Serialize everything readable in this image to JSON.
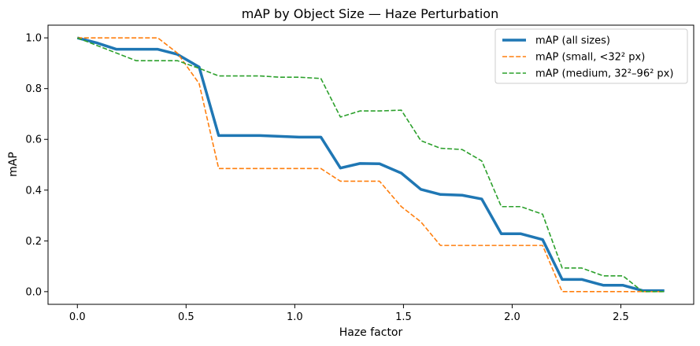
{
  "chart_data": {
    "type": "line",
    "title": "mAP by Object Size — Haze Perturbation",
    "xlabel": "Haze factor",
    "ylabel": "mAP",
    "xlim": [
      -0.135,
      2.835
    ],
    "ylim": [
      -0.05,
      1.05
    ],
    "xticks": [
      0.0,
      0.5,
      1.0,
      1.5,
      2.0,
      2.5
    ],
    "xtick_labels": [
      "0.0",
      "0.5",
      "1.0",
      "1.5",
      "2.0",
      "2.5"
    ],
    "yticks": [
      0.0,
      0.2,
      0.4,
      0.6,
      0.8,
      1.0
    ],
    "ytick_labels": [
      "0.0",
      "0.2",
      "0.4",
      "0.6",
      "0.8",
      "1.0"
    ],
    "grid": false,
    "legend_position": "top-right",
    "x": [
      0.0,
      0.09,
      0.18,
      0.27,
      0.37,
      0.46,
      0.56,
      0.65,
      0.74,
      0.84,
      0.93,
      1.02,
      1.12,
      1.21,
      1.3,
      1.39,
      1.49,
      1.58,
      1.67,
      1.77,
      1.86,
      1.95,
      2.04,
      2.14,
      2.23,
      2.32,
      2.42,
      2.51,
      2.6,
      2.7
    ],
    "series": [
      {
        "name": "mAP (all sizes)",
        "color": "#1f77b4",
        "style": "solid",
        "values": [
          1.0,
          0.98,
          0.955,
          0.955,
          0.955,
          0.935,
          0.885,
          0.615,
          0.615,
          0.615,
          0.612,
          0.609,
          0.609,
          0.487,
          0.505,
          0.504,
          0.467,
          0.403,
          0.383,
          0.38,
          0.365,
          0.228,
          0.228,
          0.205,
          0.048,
          0.048,
          0.025,
          0.025,
          0.004,
          0.004
        ]
      },
      {
        "name": "mAP (small, <32² px)",
        "color": "#ff7f0e",
        "style": "dashed",
        "values": [
          1.0,
          1.0,
          1.0,
          1.0,
          1.0,
          0.94,
          0.82,
          0.485,
          0.485,
          0.485,
          0.485,
          0.485,
          0.485,
          0.435,
          0.435,
          0.435,
          0.335,
          0.275,
          0.182,
          0.182,
          0.182,
          0.182,
          0.182,
          0.182,
          0.0,
          0.0,
          0.0,
          0.0,
          0.0,
          0.0
        ]
      },
      {
        "name": "mAP (medium, 32²–96² px)",
        "color": "#2ca02c",
        "style": "dashed",
        "values": [
          1.0,
          0.97,
          0.94,
          0.91,
          0.91,
          0.91,
          0.88,
          0.85,
          0.85,
          0.85,
          0.845,
          0.845,
          0.84,
          0.688,
          0.712,
          0.712,
          0.715,
          0.595,
          0.565,
          0.56,
          0.515,
          0.335,
          0.335,
          0.305,
          0.093,
          0.093,
          0.062,
          0.062,
          0.0,
          0.0
        ]
      }
    ]
  }
}
